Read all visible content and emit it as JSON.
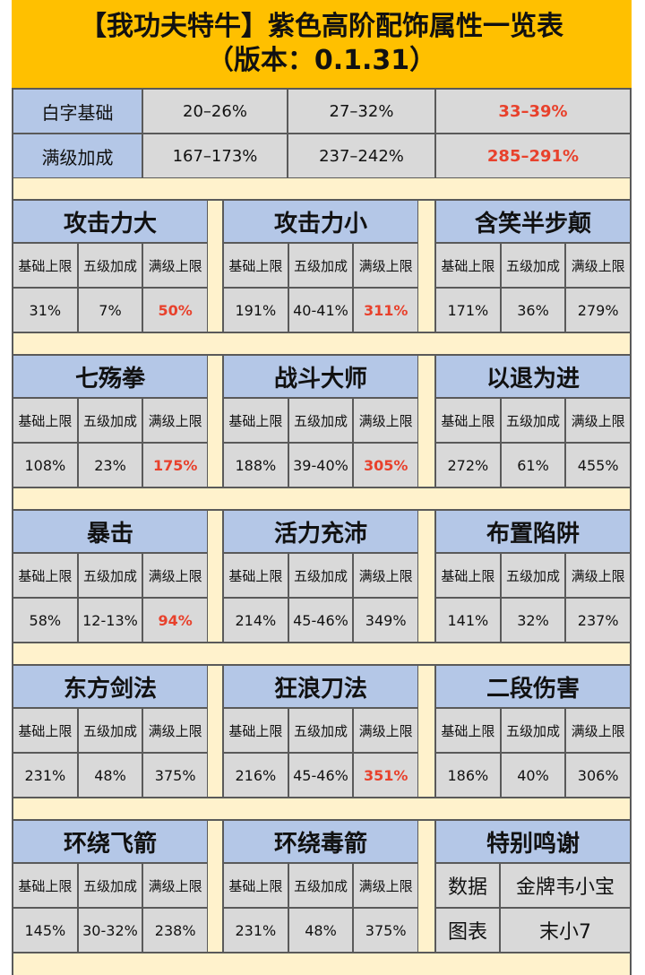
{
  "header": {
    "title": "【我功夫特牛】紫色高阶配饰属性一览表",
    "subtitle": "（版本：0.1.31）"
  },
  "highlight_color": "#e8412c",
  "summary": [
    {
      "label": "白字基础",
      "values": [
        "20–26%",
        "27–32%",
        "33–39%"
      ],
      "red": true
    },
    {
      "label": "满级加成",
      "values": [
        "167–173%",
        "237–242%",
        "285–291%"
      ],
      "red": true
    }
  ],
  "columns": [
    "基础上限",
    "五级加成",
    "满级上限"
  ],
  "skills": [
    {
      "name": "攻击力大",
      "values": [
        "31%",
        "7%",
        "50%"
      ],
      "red": true
    },
    {
      "name": "攻击力小",
      "values": [
        "191%",
        "40-41%",
        "311%"
      ],
      "red": true
    },
    {
      "name": "含笑半步颠",
      "values": [
        "171%",
        "36%",
        "279%"
      ],
      "red": false
    },
    {
      "name": "七殇拳",
      "values": [
        "108%",
        "23%",
        "175%"
      ],
      "red": true
    },
    {
      "name": "战斗大师",
      "values": [
        "188%",
        "39-40%",
        "305%"
      ],
      "red": true
    },
    {
      "name": "以退为进",
      "values": [
        "272%",
        "61%",
        "455%"
      ],
      "red": false
    },
    {
      "name": "暴击",
      "values": [
        "58%",
        "12-13%",
        "94%"
      ],
      "red": true
    },
    {
      "name": "活力充沛",
      "values": [
        "214%",
        "45-46%",
        "349%"
      ],
      "red": false
    },
    {
      "name": "布置陷阱",
      "values": [
        "141%",
        "32%",
        "237%"
      ],
      "red": false
    },
    {
      "name": "东方剑法",
      "values": [
        "231%",
        "48%",
        "375%"
      ],
      "red": false
    },
    {
      "name": "狂浪刀法",
      "values": [
        "216%",
        "45-46%",
        "351%"
      ],
      "red": true
    },
    {
      "name": "二段伤害",
      "values": [
        "186%",
        "40%",
        "306%"
      ],
      "red": false
    },
    {
      "name": "环绕飞箭",
      "values": [
        "145%",
        "30-32%",
        "238%"
      ],
      "red": false
    },
    {
      "name": "环绕毒箭",
      "values": [
        "231%",
        "48%",
        "375%"
      ],
      "red": false
    }
  ],
  "credits": {
    "title": "特别鸣谢",
    "rows": [
      [
        "数据",
        "金牌韦小宝"
      ],
      [
        "图表",
        "末小7"
      ]
    ]
  }
}
